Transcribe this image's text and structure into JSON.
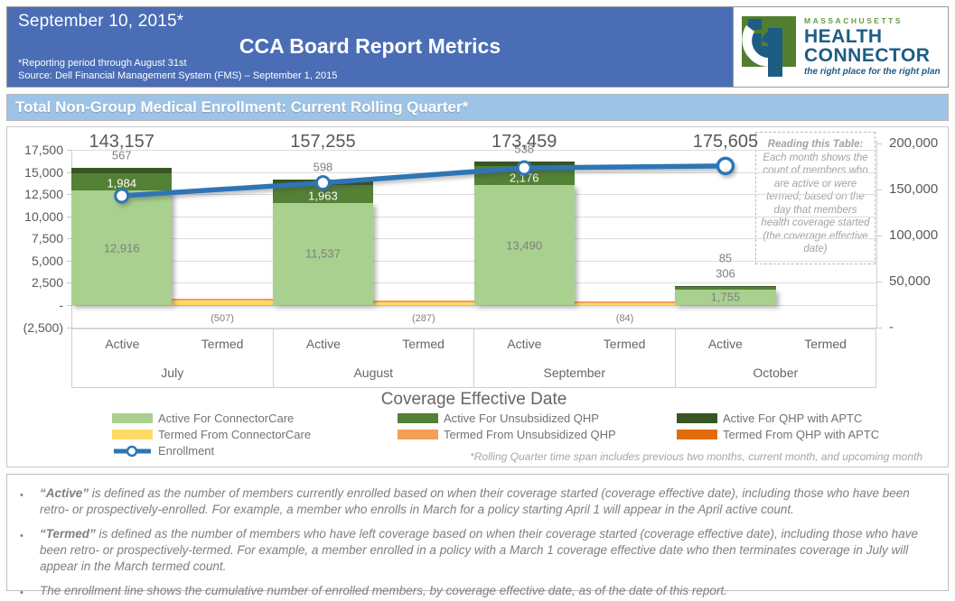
{
  "header": {
    "date": "September 10, 2015*",
    "title": "CCA Board Report Metrics",
    "note1": "*Reporting period through August 31st",
    "note2": "Source: Dell Financial Management System (FMS) – September 1, 2015"
  },
  "logo": {
    "region": "MASSACHUSETTS",
    "line1": "HEALTH",
    "line2": "CONNECTOR",
    "tagline": "the right place for the right plan",
    "green": "#6a9a3f",
    "blue": "#1d5d84"
  },
  "section_title": "Total Non-Group Medical Enrollment: Current Rolling Quarter*",
  "chart_data": {
    "type": "bar",
    "subtype": "stacked-bars-with-line",
    "categories": [
      "July",
      "August",
      "September",
      "October"
    ],
    "sub_categories": [
      "Active",
      "Termed"
    ],
    "xlabel": "Coverage Effective Date",
    "active_series": [
      {
        "name": "Active For ConnectorCare",
        "color": "#a9d08e",
        "label_color": "#7f7f7f",
        "values": [
          12916,
          11537,
          13490,
          1755
        ],
        "value_labels": [
          "12,916",
          "11,537",
          "13,490",
          "1,755"
        ]
      },
      {
        "name": "Active For Unsubsidized QHP",
        "color": "#538135",
        "label_color": "#ffffff",
        "values": [
          1984,
          1963,
          2176,
          306
        ],
        "value_labels": [
          "1,984",
          "1,963",
          "2,176",
          "306"
        ]
      },
      {
        "name": "Active For QHP with APTC",
        "color": "#375623",
        "label_color": "#7f7f7f",
        "values": [
          567,
          598,
          538,
          85
        ],
        "value_labels": [
          "567",
          "598",
          "538",
          "85"
        ]
      }
    ],
    "termed": {
      "values": [
        507,
        287,
        84,
        0
      ],
      "value_labels": [
        "(507)",
        "(287)",
        "(84)",
        ""
      ],
      "base_color": "#ffd966",
      "edge_color": "#f0a055"
    },
    "line": {
      "name": "Enrollment",
      "color": "#2e75b6",
      "values": [
        143157,
        157255,
        173459,
        175605
      ],
      "value_labels": [
        "143,157",
        "157,255",
        "173,459",
        "175,605"
      ]
    },
    "left_axis": {
      "values": [
        17500,
        15000,
        12500,
        10000,
        7500,
        5000,
        2500,
        0,
        -2500
      ],
      "labels": [
        "17,500",
        "15,000",
        "12,500",
        "10,000",
        "7,500",
        "5,000",
        "2,500",
        "-",
        "(2,500)"
      ],
      "max": 17500,
      "min": -2500
    },
    "right_axis": {
      "values": [
        200000,
        150000,
        100000,
        50000,
        0
      ],
      "labels": [
        "200,000",
        "150,000",
        "100,000",
        "50,000",
        "-"
      ],
      "max": 200000,
      "min": 0
    },
    "legend_columns": [
      [
        {
          "label": "Active For ConnectorCare",
          "color": "#a9d08e",
          "kind": "box"
        },
        {
          "label": "Termed From ConnectorCare",
          "color": "#ffd966",
          "kind": "box"
        },
        {
          "label": "Enrollment",
          "color": "#2e75b6",
          "kind": "line"
        }
      ],
      [
        {
          "label": "Active For Unsubsidized QHP",
          "color": "#538135",
          "kind": "box"
        },
        {
          "label": "Termed From Unsubsidized QHP",
          "color": "#f0a055",
          "kind": "box"
        }
      ],
      [
        {
          "label": "Active For QHP with APTC",
          "color": "#375623",
          "kind": "box"
        },
        {
          "label": "Termed From QHP with APTC",
          "color": "#e36c0a",
          "kind": "box"
        }
      ]
    ],
    "reading_note_title": "Reading this Table:",
    "reading_note_body": "Each month shows the count of members who are active or were termed, based on the day that members health coverage started (the coverage effective date)",
    "footnote": "*Rolling Quarter time span includes previous two months, current month, and upcoming month"
  },
  "notes": [
    {
      "lead": "“Active”",
      "body": " is defined as the number of members currently enrolled based on when their coverage started (coverage effective date), including those who have been retro- or prospectively-enrolled.  For example, a member who enrolls in March for a policy starting April 1 will appear in the April active count."
    },
    {
      "lead": "“Termed”",
      "body": " is defined as the number of members who have left coverage based on when their coverage started (coverage effective date), including those who have been retro- or prospectively-termed.  For example, a member enrolled in a policy with a March 1 coverage effective date who then terminates coverage in July will appear in the March termed count."
    },
    {
      "lead": "",
      "body": "The enrollment line shows the cumulative number of enrolled members, by coverage effective date, as of the date of this report."
    }
  ]
}
